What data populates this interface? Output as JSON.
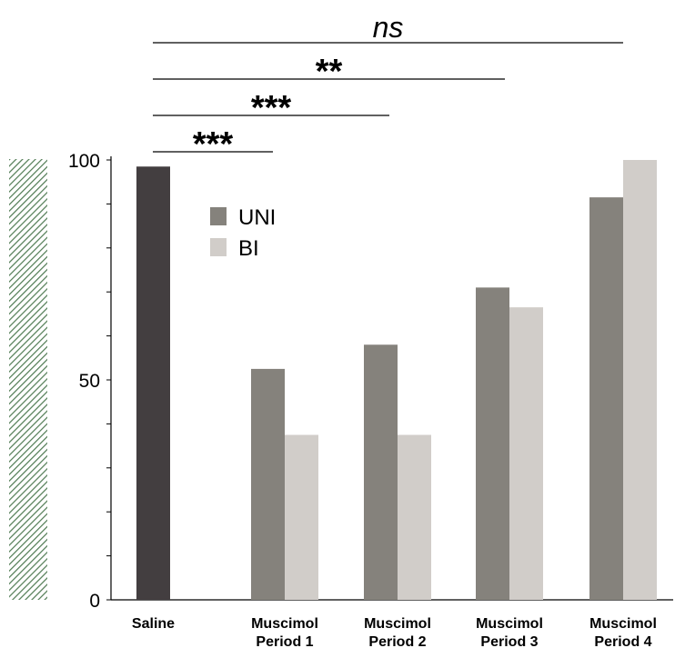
{
  "chart_data": {
    "type": "bar",
    "title": "",
    "xlabel": "",
    "ylabel": "",
    "ylim": [
      0,
      100
    ],
    "yticks": [
      0,
      50,
      100
    ],
    "grid": false,
    "legend": {
      "position": "top-left",
      "entries": [
        "UNI",
        "BI"
      ]
    },
    "groups": [
      {
        "label": [
          "Saline"
        ],
        "bars": [
          {
            "series": "Saline",
            "value": 98.5
          }
        ]
      },
      {
        "label": [
          "Muscimol",
          "Period 1"
        ],
        "bars": [
          {
            "series": "UNI",
            "value": 52.5
          },
          {
            "series": "BI",
            "value": 37.5
          }
        ]
      },
      {
        "label": [
          "Muscimol",
          "Period 2"
        ],
        "bars": [
          {
            "series": "UNI",
            "value": 58.0
          },
          {
            "series": "BI",
            "value": 37.5
          }
        ]
      },
      {
        "label": [
          "Muscimol",
          "Period 3"
        ],
        "bars": [
          {
            "series": "UNI",
            "value": 71.0
          },
          {
            "series": "BI",
            "value": 66.5
          }
        ]
      },
      {
        "label": [
          "Muscimol",
          "Period 4"
        ],
        "bars": [
          {
            "series": "UNI",
            "value": 91.5
          },
          {
            "series": "BI",
            "value": 100.0
          }
        ]
      }
    ],
    "series_colors": {
      "Saline": "#433e40",
      "UNI": "#85827c",
      "BI": "#d1cdc9"
    },
    "significance": [
      {
        "label": "***",
        "from": "Saline",
        "to": "Muscimol Period 1"
      },
      {
        "label": "***",
        "from": "Saline",
        "to": "Muscimol Period 2"
      },
      {
        "label": "**",
        "from": "Saline",
        "to": "Muscimol Period 3"
      },
      {
        "label": "ns",
        "from": "Saline",
        "to": "Muscimol Period 4"
      }
    ]
  }
}
